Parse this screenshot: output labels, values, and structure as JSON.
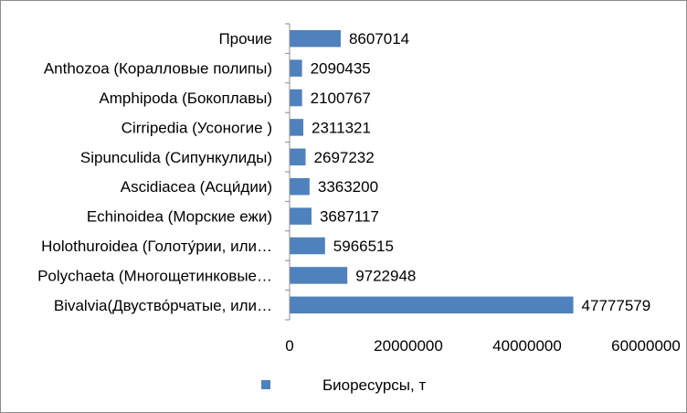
{
  "chart_data": {
    "type": "bar",
    "orientation": "horizontal",
    "categories": [
      "Прочие",
      "Anthozoa (Коралловые полипы)",
      "Amphipoda (Бокоплавы)",
      "Cirripedia (Усоногие )",
      "Sipunculida (Сипункулиды)",
      "Ascidiacea (Асци́дии)",
      "Echinoidea (Морские ежи)",
      "Holothuroidea (Голоту́рии, или…",
      "Polychaeta (Многощетинковые…",
      "Bivalvia(Двуство́рчатые, или…"
    ],
    "series": [
      {
        "name": "Биоресурсы, т",
        "color": "#4f81bd",
        "values": [
          8607014,
          2090435,
          2100767,
          2311321,
          2697232,
          3363200,
          3687117,
          5966515,
          9722948,
          47777579
        ]
      }
    ],
    "value_labels": [
      "8607014",
      "2090435",
      "2100767",
      "2311321",
      "2697232",
      "3363200",
      "3687117",
      "5966515",
      "9722948",
      "47777579"
    ],
    "x_ticks": [
      0,
      20000000,
      40000000,
      60000000
    ],
    "x_tick_labels": [
      "0",
      "20000000",
      "40000000",
      "60000000"
    ],
    "xlim": [
      0,
      60000000
    ],
    "title": "",
    "xlabel": "",
    "ylabel": "",
    "grid": false,
    "legend_position": "bottom"
  }
}
